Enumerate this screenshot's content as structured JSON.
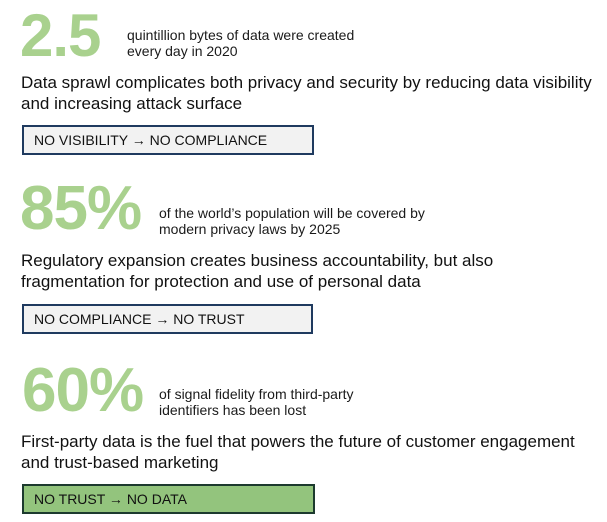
{
  "sections": [
    {
      "stat": "2.5",
      "stat_desc_line1": "quintillion bytes of data were created",
      "stat_desc_line2": "every day in 2020",
      "lead": "Data sprawl",
      "body": " complicates both privacy and security by reducing data visibility and increasing attack surface",
      "tag": "NO VISIBILITY → NO COMPLIANCE"
    },
    {
      "stat": "85%",
      "stat_desc_line1": "of the world’s population will be covered by",
      "stat_desc_line2": "modern privacy laws by 2025",
      "lead": "Regulatory expansion",
      "body": " creates business accountability, but also fragmentation for protection and use of personal data",
      "tag": "NO COMPLIANCE → NO TRUST"
    },
    {
      "stat": "60%",
      "stat_desc_line1": "of signal fidelity from third-party",
      "stat_desc_line2": "identifiers has been lost",
      "lead": "First-party data",
      "body": " is the fuel that powers the future of customer engagement and trust-based marketing",
      "tag": "NO TRUST → NO DATA"
    }
  ],
  "colors": {
    "stat_green": "#a9d18e",
    "tag_border": "#1f3a5f",
    "tag_bg": "#f2f2f2",
    "tag_highlight_bg": "#93c47d"
  }
}
